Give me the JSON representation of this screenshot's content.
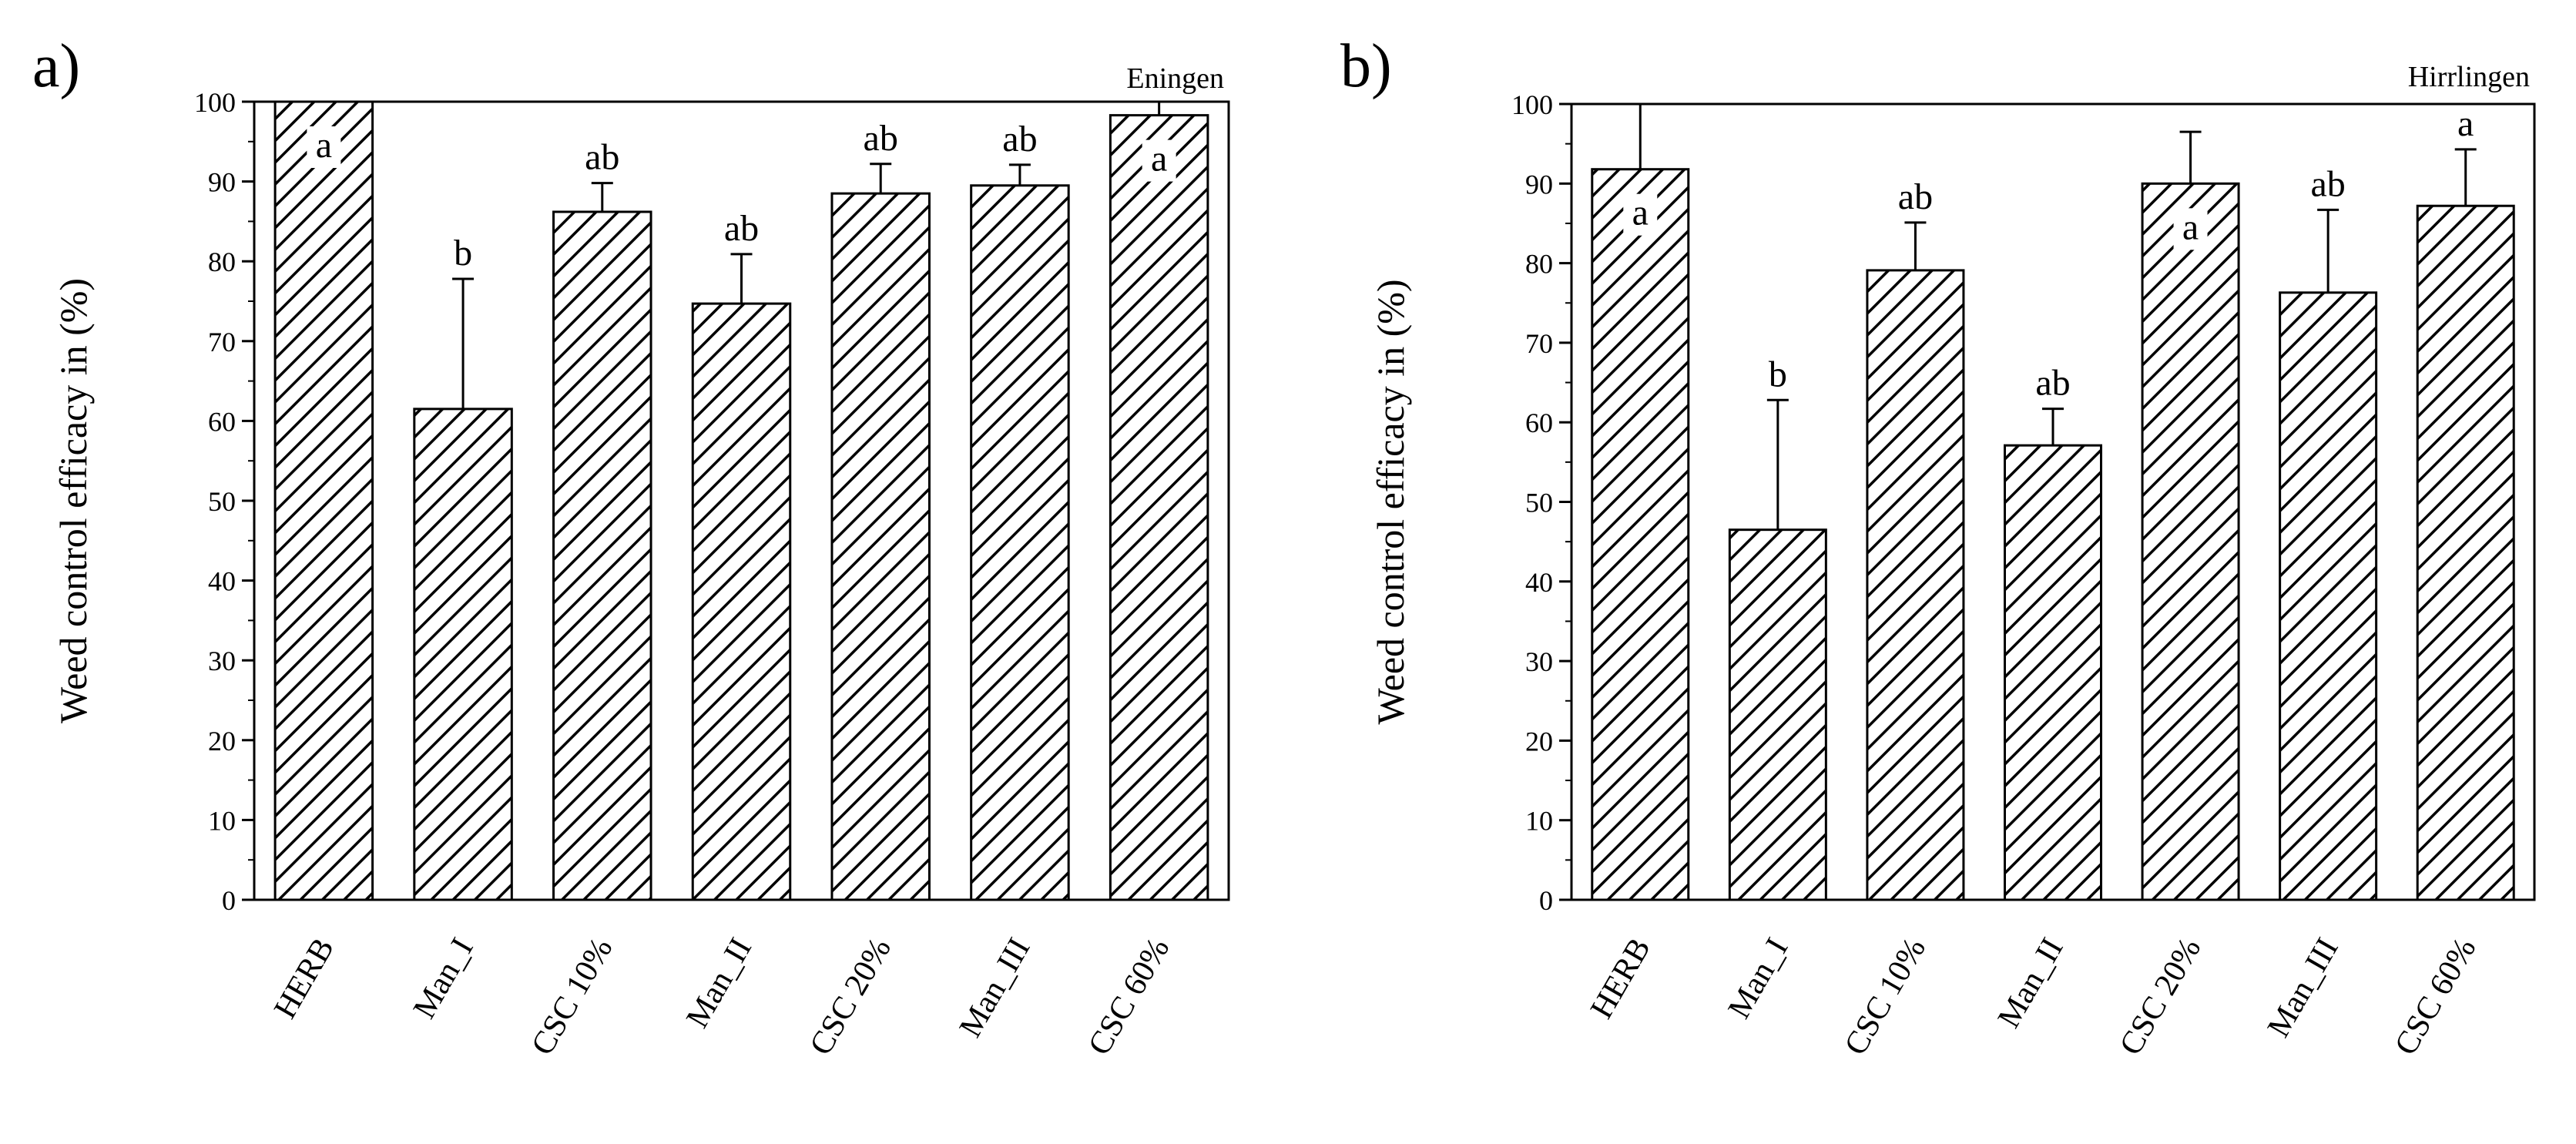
{
  "chart_data": [
    {
      "type": "bar",
      "panel": "a)",
      "site": "Eningen",
      "categories": [
        "HERB",
        "Man_I",
        "CSC 10%",
        "Man_II",
        "CSC 20%",
        "Man_III",
        "CSC 60%"
      ],
      "values": [
        100,
        61.5,
        86.2,
        74.7,
        88.5,
        89.5,
        98.3
      ],
      "errors": [
        0,
        16.3,
        3.6,
        6.2,
        3.7,
        2.6,
        1.7
      ],
      "significance": [
        "a",
        "b",
        "ab",
        "ab",
        "ab",
        "ab",
        "a"
      ],
      "ylabel": "Weed control efficacy in (%)",
      "xlabel": "",
      "ylim": [
        0,
        100
      ],
      "yticks": [
        "0",
        "10",
        "20",
        "30",
        "40",
        "50",
        "60",
        "70",
        "80",
        "90",
        "100"
      ]
    },
    {
      "type": "bar",
      "panel": "b)",
      "site": "Hirrlingen",
      "categories": [
        "HERB",
        "Man_I",
        "CSC 10%",
        "Man_II",
        "CSC 20%",
        "Man_III",
        "CSC 60%"
      ],
      "values": [
        91.8,
        46.5,
        79.1,
        57.1,
        90.0,
        76.3,
        87.2
      ],
      "errors": [
        8.2,
        16.3,
        6.0,
        4.6,
        6.5,
        10.4,
        7.1
      ],
      "significance": [
        "a",
        "b",
        "ab",
        "ab",
        "a",
        "ab",
        "a"
      ],
      "ylabel": "Weed control efficacy in (%)",
      "xlabel": "",
      "ylim": [
        0,
        100
      ],
      "yticks": [
        "0",
        "10",
        "20",
        "30",
        "40",
        "50",
        "60",
        "70",
        "80",
        "90",
        "100"
      ]
    }
  ]
}
